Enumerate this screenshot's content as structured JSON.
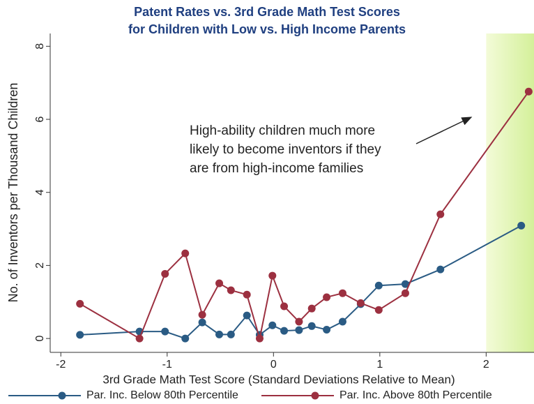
{
  "chart_data": {
    "type": "line",
    "title": [
      "Patent Rates vs. 3rd Grade Math Test Scores",
      "for Children with Low vs. High Income Parents"
    ],
    "x_label": "3rd Grade Math Test Score (Standard Deviations Relative to Mean)",
    "y_label": "No. of Inventors per Thousand Children",
    "annotation": [
      "High-ability children much more",
      "likely to become inventors if they",
      "are from high-income families"
    ],
    "xlim": [
      -2.1,
      2.45
    ],
    "ylim": [
      -0.38,
      8.35
    ],
    "xticks": [
      -2,
      -1,
      0,
      1,
      2
    ],
    "yticks": [
      0,
      2,
      4,
      6,
      8
    ],
    "shade_xlim": [
      2,
      2.45
    ],
    "series": [
      {
        "name": "Par. Inc. Below 80th Percentile",
        "color": "#2a5b84",
        "x": [
          -1.82,
          -1.26,
          -1.02,
          -0.83,
          -0.67,
          -0.51,
          -0.4,
          -0.25,
          -0.13,
          -0.01,
          0.1,
          0.24,
          0.36,
          0.5,
          0.65,
          0.82,
          0.99,
          1.24,
          1.57,
          2.33
        ],
        "values": [
          0.1,
          0.19,
          0.19,
          0,
          0.44,
          0.11,
          0.11,
          0.63,
          0.1,
          0.36,
          0.21,
          0.23,
          0.34,
          0.24,
          0.46,
          0.94,
          1.45,
          1.49,
          1.89,
          3.09
        ]
      },
      {
        "name": "Par. Inc. Above 80th Percentile",
        "color": "#9c3040",
        "x": [
          -1.82,
          -1.26,
          -1.02,
          -0.83,
          -0.67,
          -0.51,
          -0.4,
          -0.25,
          -0.13,
          -0.01,
          0.1,
          0.24,
          0.36,
          0.5,
          0.65,
          0.82,
          0.99,
          1.24,
          1.57,
          2.4
        ],
        "values": [
          0.95,
          0,
          1.77,
          2.33,
          0.65,
          1.51,
          1.32,
          1.2,
          0,
          1.72,
          0.88,
          0.46,
          0.82,
          1.13,
          1.24,
          0.97,
          0.78,
          1.24,
          3.4,
          6.76
        ]
      }
    ]
  }
}
